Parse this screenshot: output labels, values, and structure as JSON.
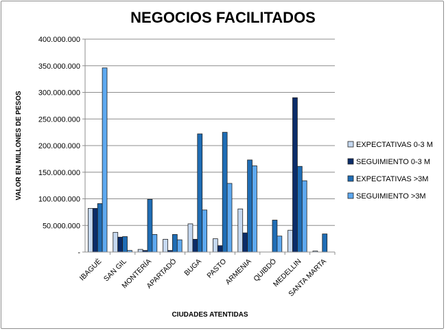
{
  "chart_data": {
    "type": "bar",
    "title": "NEGOCIOS FACILITADOS",
    "xlabel": "CIUDADES  ATENTIDAS",
    "ylabel": "VALOR EN MILLONES  DE PESOS",
    "ylim": [
      0,
      400000000
    ],
    "yticks": [
      0,
      50000000,
      100000000,
      150000000,
      200000000,
      250000000,
      300000000,
      350000000,
      400000000
    ],
    "ytick_labels": [
      "-",
      "50.000.000",
      "100.000.000",
      "150.000.000",
      "200.000.000",
      "250.000.000",
      "300.000.000",
      "350.000.000",
      "400.000.000"
    ],
    "grid": true,
    "legend_position": "right",
    "categories": [
      "IBAGUÉ",
      "SAN GIL",
      "MONTERÍA",
      "APARTADÓ",
      "BUGA",
      "PASTO",
      "ARMENIA",
      "QUIBDÓ",
      "MEDELLIN",
      "SANTA MARTA"
    ],
    "series": [
      {
        "name": "EXPECTATIVAS 0-3 M",
        "color": "#c6d9f1",
        "values": [
          82000000,
          37000000,
          5000000,
          24000000,
          53000000,
          25000000,
          81000000,
          0,
          41000000,
          2000000
        ]
      },
      {
        "name": "SEGUIMIENTO 0-3 M",
        "color": "#0b2c69",
        "values": [
          82000000,
          28000000,
          3000000,
          3000000,
          24000000,
          12000000,
          36000000,
          0,
          290000000,
          0
        ]
      },
      {
        "name": "EXPECTATIVAS >3M",
        "color": "#1f6db5",
        "values": [
          91000000,
          29000000,
          99000000,
          33000000,
          222000000,
          225000000,
          173000000,
          60000000,
          161000000,
          34000000
        ]
      },
      {
        "name": "SEGUIMIENTO >3M",
        "color": "#5ea9f0",
        "values": [
          346000000,
          3000000,
          33000000,
          23000000,
          79000000,
          129000000,
          162000000,
          30000000,
          134000000,
          0
        ]
      }
    ]
  }
}
